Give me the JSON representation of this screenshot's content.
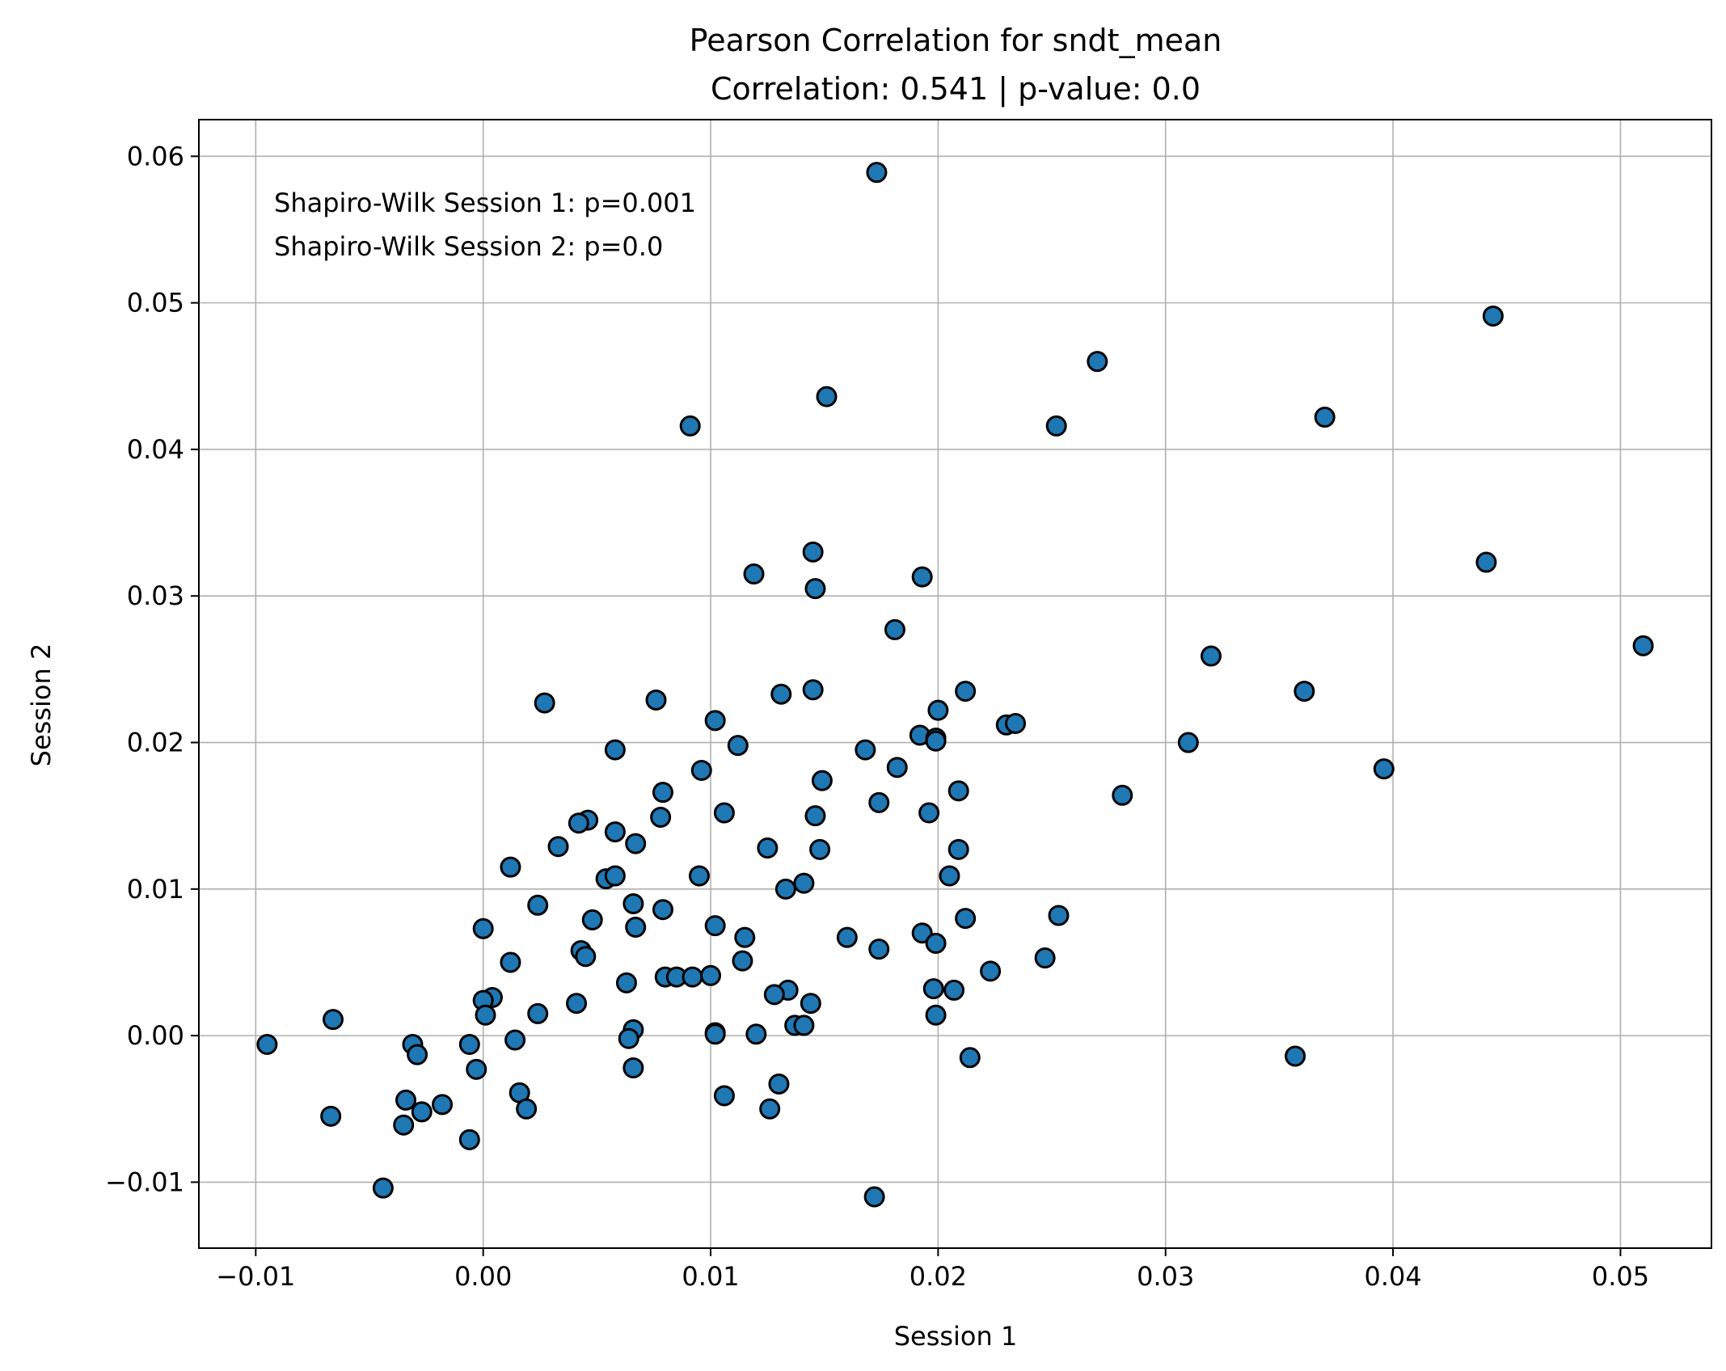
{
  "chart_data": {
    "type": "scatter",
    "title": "Pearson Correlation for sndt_mean",
    "subtitle": "Correlation: 0.541 | p-value: 0.0",
    "xlabel": "Session 1",
    "ylabel": "Session 2",
    "xlim": [
      -0.0125,
      0.054
    ],
    "ylim": [
      -0.0145,
      0.0625
    ],
    "grid": true,
    "xticks": [
      -0.01,
      0.0,
      0.01,
      0.02,
      0.03,
      0.04,
      0.05
    ],
    "xtick_labels": [
      "−0.01",
      "0.00",
      "0.01",
      "0.02",
      "0.03",
      "0.04",
      "0.05"
    ],
    "yticks": [
      -0.01,
      0.0,
      0.01,
      0.02,
      0.03,
      0.04,
      0.05,
      0.06
    ],
    "ytick_labels": [
      "−0.01",
      "0.00",
      "0.01",
      "0.02",
      "0.03",
      "0.04",
      "0.05",
      "0.06"
    ],
    "annotations": [
      "Shapiro-Wilk Session 1: p=0.001",
      "Shapiro-Wilk Session 2: p=0.0"
    ],
    "marker_color": "#1f77b4",
    "marker_edge_color": "#000000",
    "points": [
      [
        0.0173,
        0.0589
      ],
      [
        0.0444,
        0.0491
      ],
      [
        0.027,
        0.046
      ],
      [
        0.0151,
        0.0436
      ],
      [
        0.037,
        0.0422
      ],
      [
        0.0091,
        0.0416
      ],
      [
        0.0252,
        0.0416
      ],
      [
        0.0145,
        0.033
      ],
      [
        0.0441,
        0.0323
      ],
      [
        0.0119,
        0.0315
      ],
      [
        0.0193,
        0.0313
      ],
      [
        0.0146,
        0.0305
      ],
      [
        0.0181,
        0.0277
      ],
      [
        0.051,
        0.0266
      ],
      [
        0.032,
        0.0259
      ],
      [
        0.0145,
        0.0236
      ],
      [
        0.0361,
        0.0235
      ],
      [
        0.0212,
        0.0235
      ],
      [
        0.0131,
        0.0233
      ],
      [
        0.0076,
        0.0229
      ],
      [
        0.0027,
        0.0227
      ],
      [
        0.02,
        0.0222
      ],
      [
        0.0102,
        0.0215
      ],
      [
        0.023,
        0.0212
      ],
      [
        0.0234,
        0.0213
      ],
      [
        0.0192,
        0.0205
      ],
      [
        0.0199,
        0.0203
      ],
      [
        0.0199,
        0.0201
      ],
      [
        0.031,
        0.02
      ],
      [
        0.0112,
        0.0198
      ],
      [
        0.0058,
        0.0195
      ],
      [
        0.0168,
        0.0195
      ],
      [
        0.0182,
        0.0183
      ],
      [
        0.0396,
        0.0182
      ],
      [
        0.0096,
        0.0181
      ],
      [
        0.0149,
        0.0174
      ],
      [
        0.0209,
        0.0167
      ],
      [
        0.0079,
        0.0166
      ],
      [
        0.0281,
        0.0164
      ],
      [
        0.0174,
        0.0159
      ],
      [
        0.0106,
        0.0152
      ],
      [
        0.0196,
        0.0152
      ],
      [
        0.0146,
        0.015
      ],
      [
        0.0078,
        0.0149
      ],
      [
        0.0046,
        0.0147
      ],
      [
        0.0042,
        0.0145
      ],
      [
        0.0058,
        0.0139
      ],
      [
        0.0067,
        0.0131
      ],
      [
        0.0033,
        0.0129
      ],
      [
        0.0125,
        0.0128
      ],
      [
        0.0148,
        0.0127
      ],
      [
        0.0209,
        0.0127
      ],
      [
        0.0012,
        0.0115
      ],
      [
        0.0095,
        0.0109
      ],
      [
        0.0205,
        0.0109
      ],
      [
        0.0054,
        0.0107
      ],
      [
        0.0058,
        0.0109
      ],
      [
        0.0141,
        0.0104
      ],
      [
        0.0133,
        0.01
      ],
      [
        0.0066,
        0.009
      ],
      [
        0.0024,
        0.0089
      ],
      [
        0.0079,
        0.0086
      ],
      [
        0.0253,
        0.0082
      ],
      [
        0.0212,
        0.008
      ],
      [
        0.0048,
        0.0079
      ],
      [
        0.0102,
        0.0075
      ],
      [
        0.0067,
        0.0074
      ],
      [
        0.0,
        0.0073
      ],
      [
        0.0193,
        0.007
      ],
      [
        0.0115,
        0.0067
      ],
      [
        0.016,
        0.0067
      ],
      [
        0.0199,
        0.0063
      ],
      [
        0.0174,
        0.0059
      ],
      [
        0.0043,
        0.0058
      ],
      [
        0.0045,
        0.0054
      ],
      [
        0.0247,
        0.0053
      ],
      [
        0.0114,
        0.0051
      ],
      [
        0.0012,
        0.005
      ],
      [
        0.0223,
        0.0044
      ],
      [
        0.008,
        0.004
      ],
      [
        0.0085,
        0.004
      ],
      [
        0.0092,
        0.004
      ],
      [
        0.01,
        0.0041
      ],
      [
        0.0063,
        0.0036
      ],
      [
        0.0134,
        0.0031
      ],
      [
        0.0198,
        0.0032
      ],
      [
        0.0207,
        0.0031
      ],
      [
        0.0128,
        0.0028
      ],
      [
        0.0004,
        0.0026
      ],
      [
        0.0,
        0.0024
      ],
      [
        0.0041,
        0.0022
      ],
      [
        0.0144,
        0.0022
      ],
      [
        0.0024,
        0.0015
      ],
      [
        0.0001,
        0.0014
      ],
      [
        0.0199,
        0.0014
      ],
      [
        0.0137,
        0.0007
      ],
      [
        0.0141,
        0.0007
      ],
      [
        -0.0066,
        0.0011
      ],
      [
        0.0102,
        0.0002
      ],
      [
        0.0102,
        0.0001
      ],
      [
        0.0066,
        0.0004
      ],
      [
        0.0064,
        -0.0002
      ],
      [
        0.012,
        0.0001
      ],
      [
        0.0014,
        -0.0003
      ],
      [
        -0.0095,
        -0.0006
      ],
      [
        -0.0031,
        -0.0006
      ],
      [
        -0.0006,
        -0.0006
      ],
      [
        -0.0029,
        -0.0013
      ],
      [
        0.0357,
        -0.0014
      ],
      [
        0.0214,
        -0.0015
      ],
      [
        -0.0003,
        -0.0023
      ],
      [
        0.0066,
        -0.0022
      ],
      [
        0.013,
        -0.0033
      ],
      [
        0.0016,
        -0.0039
      ],
      [
        0.0106,
        -0.0041
      ],
      [
        -0.0034,
        -0.0044
      ],
      [
        -0.0018,
        -0.0047
      ],
      [
        0.0019,
        -0.005
      ],
      [
        0.0126,
        -0.005
      ],
      [
        -0.0027,
        -0.0052
      ],
      [
        -0.0067,
        -0.0055
      ],
      [
        -0.0035,
        -0.0061
      ],
      [
        -0.0006,
        -0.0071
      ],
      [
        -0.0044,
        -0.0104
      ],
      [
        0.0172,
        -0.011
      ]
    ]
  }
}
